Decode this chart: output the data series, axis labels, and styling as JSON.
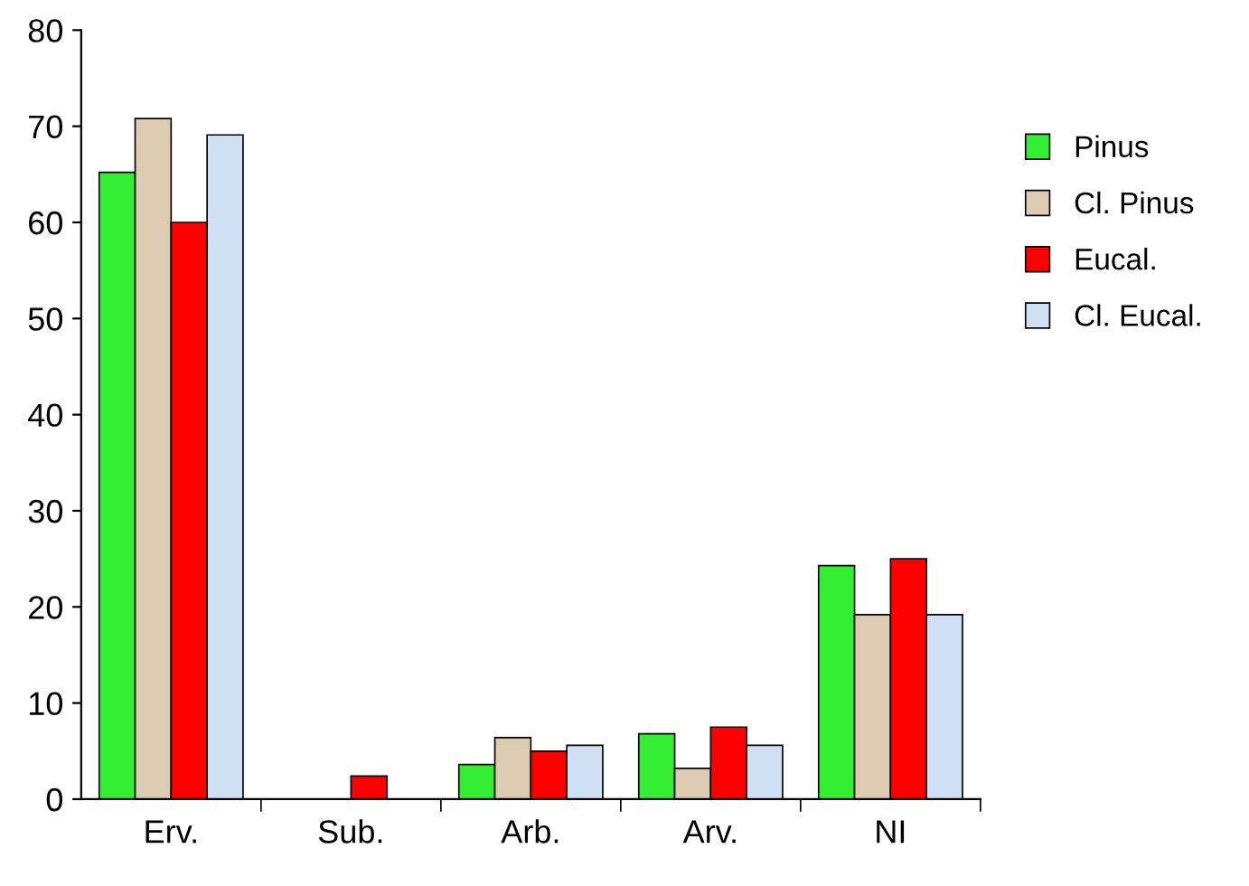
{
  "chart_data": {
    "type": "bar",
    "categories": [
      "Erv.",
      "Sub.",
      "Arb.",
      "Arv.",
      "NI"
    ],
    "series": [
      {
        "name": "Pinus",
        "color": "#33ee33",
        "values": [
          65.2,
          null,
          3.6,
          6.8,
          24.3
        ]
      },
      {
        "name": "Cl. Pinus",
        "color": "#dccbb0",
        "values": [
          70.8,
          null,
          6.4,
          3.2,
          19.2
        ]
      },
      {
        "name": "Eucal.",
        "color": "#ff0000",
        "values": [
          60,
          2.4,
          5,
          7.5,
          25
        ]
      },
      {
        "name": "Cl. Eucal.",
        "color": "#cfe0f5",
        "values": [
          69.1,
          null,
          5.6,
          5.6,
          19.2
        ]
      }
    ],
    "ylim": [
      0,
      80
    ],
    "yticks": [
      0,
      10,
      20,
      30,
      40,
      50,
      60,
      70,
      80
    ],
    "grid": false,
    "legend": "right"
  }
}
